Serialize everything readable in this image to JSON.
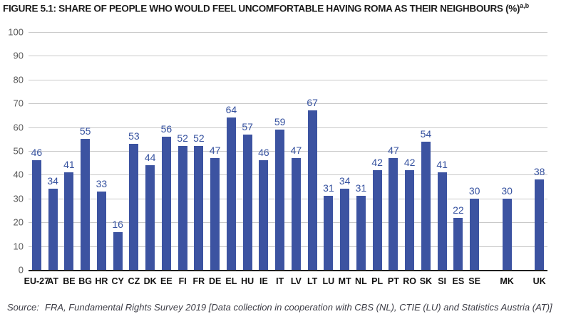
{
  "figure": {
    "title": "FIGURE 5.1: SHARE OF PEOPLE WHO WOULD FEEL UNCOMFORTABLE HAVING ROMA AS THEIR NEIGHBOURS (%)",
    "title_superscript": "a,b"
  },
  "source": {
    "label": "Source:",
    "text": "FRA, Fundamental Rights Survey 2019 [Data collection in cooperation with CBS (NL), CTIE (LU) and Statistics Austria (AT)]"
  },
  "chart_data": {
    "type": "bar",
    "title": "Share of people who would feel uncomfortable having Roma as their neighbours (%)",
    "categories": [
      "EU-27",
      "AT",
      "BE",
      "BG",
      "HR",
      "CY",
      "CZ",
      "DK",
      "EE",
      "FI",
      "FR",
      "DE",
      "EL",
      "HU",
      "IE",
      "IT",
      "LV",
      "LT",
      "LU",
      "MT",
      "NL",
      "PL",
      "PT",
      "RO",
      "SK",
      "SI",
      "ES",
      "SE",
      "MK",
      "UK"
    ],
    "values": [
      46,
      34,
      41,
      55,
      33,
      16,
      53,
      44,
      56,
      52,
      52,
      47,
      64,
      57,
      46,
      59,
      47,
      67,
      31,
      34,
      31,
      42,
      47,
      42,
      54,
      41,
      22,
      30,
      30,
      38
    ],
    "separated_categories": [
      "MK",
      "UK"
    ],
    "xlabel": "",
    "ylabel": "",
    "ylim": [
      0,
      100
    ],
    "ytick_step": 10,
    "yticks": [
      0,
      10,
      20,
      30,
      40,
      50,
      60,
      70,
      80,
      90,
      100
    ],
    "grid": "horizontal",
    "legend_position": "none",
    "bar_color": "#3C53A1",
    "value_label_color": "#35519F",
    "gridline_color": "#C9C9C9",
    "axis_line_color": "#1F1F1F",
    "tick_label_color": "#595959",
    "x_label_color": "#111111"
  }
}
